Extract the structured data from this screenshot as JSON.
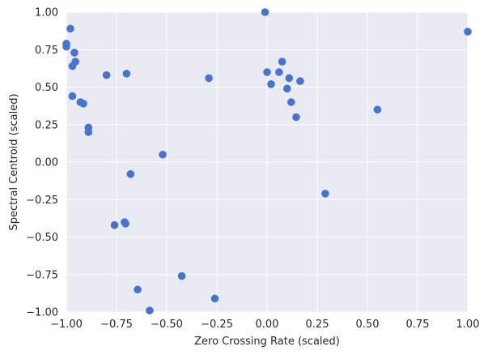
{
  "chart_data": {
    "type": "scatter",
    "xlabel": "Zero Crossing Rate (scaled)",
    "ylabel": "Spectral Centroid (scaled)",
    "xlim": [
      -1.0,
      1.0
    ],
    "ylim": [
      -1.0,
      1.0
    ],
    "xticks": [
      "−1.00",
      "−0.75",
      "−0.50",
      "−0.25",
      "0.00",
      "0.25",
      "0.50",
      "0.75",
      "1.00"
    ],
    "yticks": [
      "−1.00",
      "−0.75",
      "−0.50",
      "−0.25",
      "0.00",
      "0.25",
      "0.50",
      "0.75",
      "1.00"
    ],
    "grid": true,
    "background_color": "#eaeaf2",
    "grid_color": "#ffffff",
    "point_color": "#4674d1",
    "points": [
      {
        "x": -1.0,
        "y": 0.79
      },
      {
        "x": -1.0,
        "y": 0.77
      },
      {
        "x": -0.98,
        "y": 0.89
      },
      {
        "x": -0.96,
        "y": 0.73
      },
      {
        "x": -0.955,
        "y": 0.67
      },
      {
        "x": -0.97,
        "y": 0.64
      },
      {
        "x": -0.97,
        "y": 0.44
      },
      {
        "x": -0.93,
        "y": 0.4
      },
      {
        "x": -0.915,
        "y": 0.39
      },
      {
        "x": -0.89,
        "y": 0.23
      },
      {
        "x": -0.89,
        "y": 0.2
      },
      {
        "x": -0.8,
        "y": 0.58
      },
      {
        "x": -0.7,
        "y": 0.59
      },
      {
        "x": -0.68,
        "y": -0.08
      },
      {
        "x": -0.76,
        "y": -0.42
      },
      {
        "x": -0.71,
        "y": -0.4
      },
      {
        "x": -0.705,
        "y": -0.41
      },
      {
        "x": -0.52,
        "y": 0.05
      },
      {
        "x": -0.645,
        "y": -0.85
      },
      {
        "x": -0.585,
        "y": -0.99
      },
      {
        "x": -0.425,
        "y": -0.76
      },
      {
        "x": -0.26,
        "y": -0.91
      },
      {
        "x": -0.29,
        "y": 0.56
      },
      {
        "x": -0.01,
        "y": 1.0
      },
      {
        "x": 0.0,
        "y": 0.6
      },
      {
        "x": 0.02,
        "y": 0.52
      },
      {
        "x": 0.06,
        "y": 0.6
      },
      {
        "x": 0.075,
        "y": 0.67
      },
      {
        "x": 0.1,
        "y": 0.49
      },
      {
        "x": 0.11,
        "y": 0.56
      },
      {
        "x": 0.12,
        "y": 0.4
      },
      {
        "x": 0.145,
        "y": 0.3
      },
      {
        "x": 0.165,
        "y": 0.54
      },
      {
        "x": 0.29,
        "y": -0.21
      },
      {
        "x": 0.55,
        "y": 0.35
      },
      {
        "x": 1.0,
        "y": 0.87
      }
    ]
  }
}
